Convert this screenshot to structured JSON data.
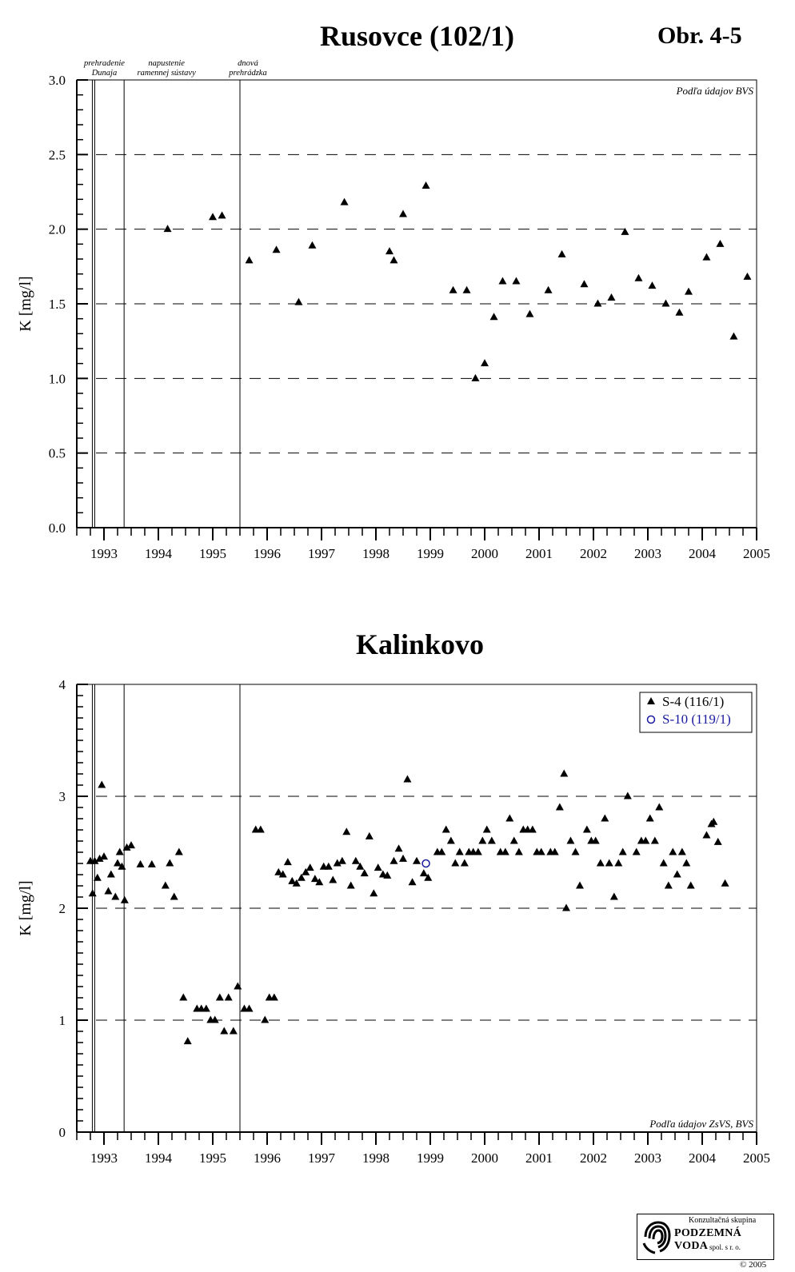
{
  "header": {
    "figure_ref": "Obr. 4-5"
  },
  "events": [
    "prehradenie\nDunaja",
    "napustenie\nramennej sústavy",
    "dnová\nprehrádzka"
  ],
  "event_dates": [
    1992.83,
    1993.37,
    1995.5
  ],
  "footer": {
    "logo_line1": "Konzultačná skupina",
    "logo_line2": "PODZEMNÁ VODA",
    "logo_line3": "spol. s r. o.",
    "copyright": "© 2005"
  },
  "colors": {
    "series1": "#000000",
    "series2": "#1a1aa0",
    "grid": "#000000"
  },
  "chart_data": [
    {
      "type": "scatter",
      "title": "Rusovce (102/1)",
      "ylabel": "K  [mg/l]",
      "xlabel": "",
      "xlim": [
        1992.5,
        2005
      ],
      "ylim": [
        0,
        3
      ],
      "x_ticks": [
        "1993",
        "1994",
        "1995",
        "1996",
        "1997",
        "1998",
        "1999",
        "2000",
        "2001",
        "2002",
        "2003",
        "2004",
        "2005"
      ],
      "y_ticks": [
        "0.0",
        "0.5",
        "1.0",
        "1.5",
        "2.0",
        "2.5",
        "3.0"
      ],
      "grid": "dashed horizontal",
      "source_note": "Podľa údajov BVS",
      "series": [
        {
          "marker": "triangle",
          "points": [
            [
              1994.17,
              2.0
            ],
            [
              1995.0,
              2.08
            ],
            [
              1995.17,
              2.09
            ],
            [
              1995.67,
              1.79
            ],
            [
              1996.17,
              1.86
            ],
            [
              1996.58,
              1.51
            ],
            [
              1996.83,
              1.89
            ],
            [
              1997.42,
              2.18
            ],
            [
              1998.25,
              1.85
            ],
            [
              1998.33,
              1.79
            ],
            [
              1998.5,
              2.1
            ],
            [
              1998.92,
              2.29
            ],
            [
              1999.42,
              1.59
            ],
            [
              1999.67,
              1.59
            ],
            [
              1999.83,
              1.0
            ],
            [
              2000.0,
              1.1
            ],
            [
              2000.17,
              1.41
            ],
            [
              2000.33,
              1.65
            ],
            [
              2000.58,
              1.65
            ],
            [
              2000.83,
              1.43
            ],
            [
              2001.17,
              1.59
            ],
            [
              2001.42,
              1.83
            ],
            [
              2001.83,
              1.63
            ],
            [
              2002.08,
              1.5
            ],
            [
              2002.33,
              1.54
            ],
            [
              2002.58,
              1.98
            ],
            [
              2002.83,
              1.67
            ],
            [
              2003.08,
              1.62
            ],
            [
              2003.33,
              1.5
            ],
            [
              2003.58,
              1.44
            ],
            [
              2003.75,
              1.58
            ],
            [
              2004.08,
              1.81
            ],
            [
              2004.33,
              1.9
            ],
            [
              2004.58,
              1.28
            ],
            [
              2004.83,
              1.68
            ]
          ]
        }
      ]
    },
    {
      "type": "scatter",
      "title": "Kalinkovo",
      "ylabel": "K  [mg/l]",
      "xlabel": "",
      "xlim": [
        1992.5,
        2005
      ],
      "ylim": [
        0,
        4
      ],
      "x_ticks": [
        "1993",
        "1994",
        "1995",
        "1996",
        "1997",
        "1998",
        "1999",
        "2000",
        "2001",
        "2002",
        "2003",
        "2004",
        "2005"
      ],
      "y_ticks": [
        "0",
        "1",
        "2",
        "3",
        "4"
      ],
      "grid": "dashed horizontal",
      "legend": "top-right",
      "source_note": "Podľa údajov ZsVS, BVS",
      "series": [
        {
          "name": "S-4  (116/1)",
          "marker": "triangle",
          "points": [
            [
              1992.75,
              2.42
            ],
            [
              1992.79,
              2.13
            ],
            [
              1992.83,
              2.42
            ],
            [
              1992.88,
              2.27
            ],
            [
              1992.92,
              2.44
            ],
            [
              1992.96,
              3.1
            ],
            [
              1993.0,
              2.46
            ],
            [
              1993.08,
              2.15
            ],
            [
              1993.13,
              2.3
            ],
            [
              1993.21,
              2.1
            ],
            [
              1993.25,
              2.4
            ],
            [
              1993.29,
              2.5
            ],
            [
              1993.33,
              2.37
            ],
            [
              1993.38,
              2.07
            ],
            [
              1993.42,
              2.54
            ],
            [
              1993.5,
              2.56
            ],
            [
              1993.67,
              2.39
            ],
            [
              1993.88,
              2.39
            ],
            [
              1994.13,
              2.2
            ],
            [
              1994.21,
              2.4
            ],
            [
              1994.29,
              2.1
            ],
            [
              1994.38,
              2.5
            ],
            [
              1994.46,
              1.2
            ],
            [
              1994.54,
              0.81
            ],
            [
              1994.71,
              1.1
            ],
            [
              1994.79,
              1.1
            ],
            [
              1994.88,
              1.1
            ],
            [
              1994.96,
              1.0
            ],
            [
              1995.04,
              1.0
            ],
            [
              1995.13,
              1.2
            ],
            [
              1995.21,
              0.9
            ],
            [
              1995.29,
              1.2
            ],
            [
              1995.38,
              0.9
            ],
            [
              1995.46,
              1.3
            ],
            [
              1995.58,
              1.1
            ],
            [
              1995.67,
              1.1
            ],
            [
              1995.79,
              2.7
            ],
            [
              1995.88,
              2.7
            ],
            [
              1995.96,
              1.0
            ],
            [
              1996.04,
              1.2
            ],
            [
              1996.13,
              1.2
            ],
            [
              1996.21,
              2.32
            ],
            [
              1996.29,
              2.3
            ],
            [
              1996.38,
              2.41
            ],
            [
              1996.46,
              2.24
            ],
            [
              1996.54,
              2.22
            ],
            [
              1996.63,
              2.27
            ],
            [
              1996.71,
              2.32
            ],
            [
              1996.79,
              2.36
            ],
            [
              1996.88,
              2.26
            ],
            [
              1996.96,
              2.23
            ],
            [
              1997.04,
              2.37
            ],
            [
              1997.13,
              2.37
            ],
            [
              1997.21,
              2.25
            ],
            [
              1997.29,
              2.4
            ],
            [
              1997.38,
              2.42
            ],
            [
              1997.46,
              2.68
            ],
            [
              1997.54,
              2.2
            ],
            [
              1997.63,
              2.42
            ],
            [
              1997.71,
              2.37
            ],
            [
              1997.79,
              2.31
            ],
            [
              1997.88,
              2.64
            ],
            [
              1997.96,
              2.13
            ],
            [
              1998.04,
              2.36
            ],
            [
              1998.13,
              2.3
            ],
            [
              1998.21,
              2.29
            ],
            [
              1998.33,
              2.42
            ],
            [
              1998.42,
              2.53
            ],
            [
              1998.5,
              2.44
            ],
            [
              1998.58,
              3.15
            ],
            [
              1998.67,
              2.23
            ],
            [
              1998.75,
              2.42
            ],
            [
              1998.88,
              2.31
            ],
            [
              1998.96,
              2.27
            ],
            [
              1999.13,
              2.5
            ],
            [
              1999.21,
              2.5
            ],
            [
              1999.29,
              2.7
            ],
            [
              1999.38,
              2.6
            ],
            [
              1999.46,
              2.4
            ],
            [
              1999.54,
              2.5
            ],
            [
              1999.63,
              2.4
            ],
            [
              1999.71,
              2.5
            ],
            [
              1999.79,
              2.5
            ],
            [
              1999.88,
              2.5
            ],
            [
              1999.96,
              2.6
            ],
            [
              2000.04,
              2.7
            ],
            [
              2000.13,
              2.6
            ],
            [
              2000.29,
              2.5
            ],
            [
              2000.38,
              2.5
            ],
            [
              2000.46,
              2.8
            ],
            [
              2000.54,
              2.6
            ],
            [
              2000.63,
              2.5
            ],
            [
              2000.71,
              2.7
            ],
            [
              2000.79,
              2.7
            ],
            [
              2000.88,
              2.7
            ],
            [
              2000.96,
              2.5
            ],
            [
              2001.04,
              2.5
            ],
            [
              2001.21,
              2.5
            ],
            [
              2001.29,
              2.5
            ],
            [
              2001.38,
              2.9
            ],
            [
              2001.46,
              3.2
            ],
            [
              2001.5,
              2.0
            ],
            [
              2001.58,
              2.6
            ],
            [
              2001.67,
              2.5
            ],
            [
              2001.75,
              2.2
            ],
            [
              2001.88,
              2.7
            ],
            [
              2001.96,
              2.6
            ],
            [
              2002.04,
              2.6
            ],
            [
              2002.13,
              2.4
            ],
            [
              2002.21,
              2.8
            ],
            [
              2002.29,
              2.4
            ],
            [
              2002.38,
              2.1
            ],
            [
              2002.46,
              2.4
            ],
            [
              2002.54,
              2.5
            ],
            [
              2002.63,
              3.0
            ],
            [
              2002.79,
              2.5
            ],
            [
              2002.88,
              2.6
            ],
            [
              2002.96,
              2.6
            ],
            [
              2003.04,
              2.8
            ],
            [
              2003.13,
              2.6
            ],
            [
              2003.21,
              2.9
            ],
            [
              2003.29,
              2.4
            ],
            [
              2003.38,
              2.2
            ],
            [
              2003.46,
              2.5
            ],
            [
              2003.54,
              2.3
            ],
            [
              2003.63,
              2.5
            ],
            [
              2003.71,
              2.4
            ],
            [
              2003.79,
              2.2
            ],
            [
              2004.08,
              2.65
            ],
            [
              2004.17,
              2.75
            ],
            [
              2004.21,
              2.77
            ],
            [
              2004.29,
              2.59
            ],
            [
              2004.42,
              2.22
            ]
          ]
        },
        {
          "name": "S-10  (119/1)",
          "marker": "circle",
          "points": [
            [
              1998.92,
              2.4
            ]
          ]
        }
      ]
    }
  ]
}
